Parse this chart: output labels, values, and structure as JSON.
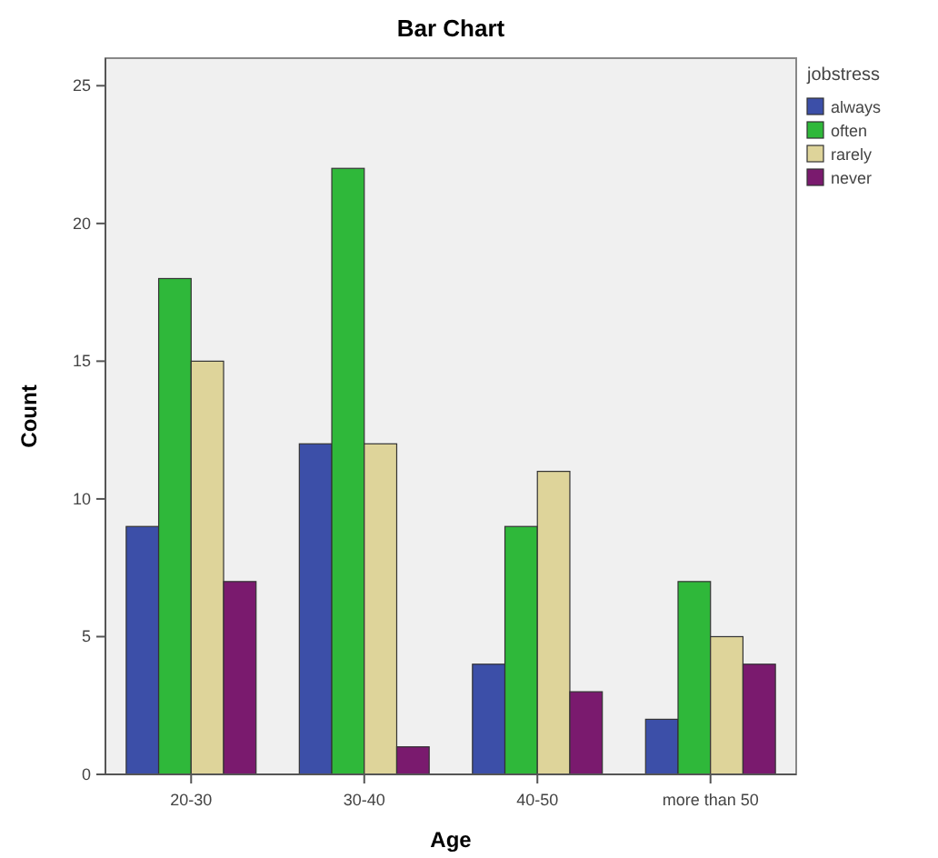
{
  "chart_data": {
    "type": "bar",
    "title": "Bar Chart",
    "xlabel": "Age",
    "ylabel": "Count",
    "legend_title": "jobstress",
    "categories": [
      "20-30",
      "30-40",
      "40-50",
      "more than 50"
    ],
    "series": [
      {
        "name": "always",
        "color": "#3c4fa8",
        "values": [
          9,
          12,
          4,
          2
        ]
      },
      {
        "name": "often",
        "color": "#2fb83a",
        "values": [
          18,
          22,
          9,
          7
        ]
      },
      {
        "name": "rarely",
        "color": "#ded49a",
        "values": [
          15,
          12,
          11,
          5
        ]
      },
      {
        "name": "never",
        "color": "#7a1a6e",
        "values": [
          7,
          1,
          3,
          4
        ]
      }
    ],
    "ylim": [
      0,
      26
    ],
    "yticks": [
      0,
      5,
      10,
      15,
      20,
      25
    ],
    "grid": false,
    "legend": "right"
  }
}
